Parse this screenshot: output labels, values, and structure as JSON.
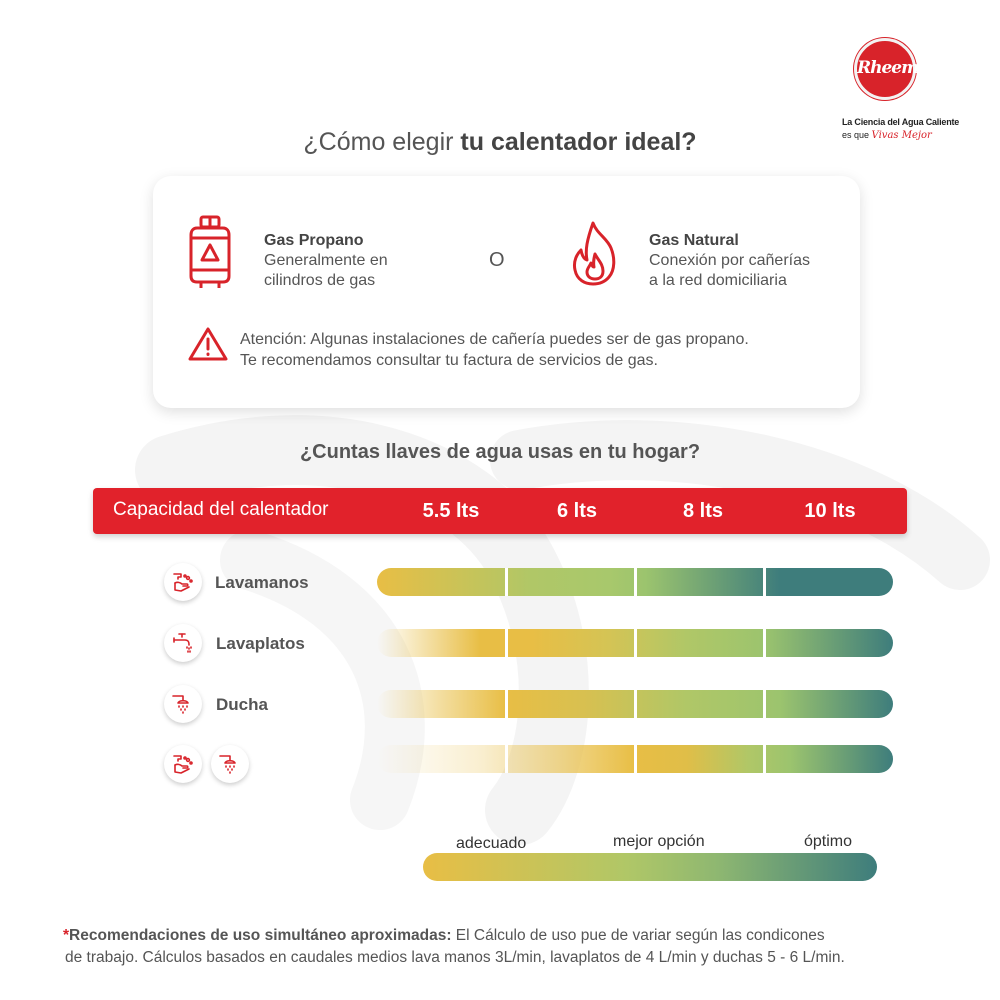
{
  "brand": {
    "logo_text": "Rheem",
    "tagline_line1": "La Ciencia del Agua Caliente",
    "tagline_prefix": "es que",
    "tagline_script": "Vivas Mejor",
    "color": "#d8232a"
  },
  "title": {
    "normal": "¿Cómo elegir ",
    "bold": "tu calentador ideal?"
  },
  "gas_card": {
    "propane": {
      "icon": "gas-cylinder-icon",
      "name": "Gas Propano",
      "desc_line1": "Generalmente en",
      "desc_line2": "cilindros de gas"
    },
    "separator": "O",
    "natural": {
      "icon": "flame-icon",
      "name": "Gas Natural",
      "desc_line1": "Conexión por cañerías",
      "desc_line2": "a la red domiciliaria"
    },
    "warning": {
      "icon": "warning-triangle-icon",
      "line1": "Atención: Algunas instalaciones de cañería puedes ser de gas propano.",
      "line2": "Te recomendamos consultar tu factura de servicios de gas."
    }
  },
  "question": "¿Cuntas llaves de agua usas en tu hogar?",
  "capacity": {
    "label": "Capacidad del calentador",
    "values": [
      "5.5 lts",
      "6 lts",
      "8 lts",
      "10 lts"
    ],
    "color": "#e1222b"
  },
  "rows": [
    {
      "label": "Lavamanos",
      "icons": [
        "hand-wash-icon"
      ]
    },
    {
      "label": "Lavaplatos",
      "icons": [
        "faucet-icon"
      ]
    },
    {
      "label": "Ducha",
      "icons": [
        "shower-icon"
      ]
    },
    {
      "label": "",
      "icons": [
        "hand-wash-icon",
        "shower-icon"
      ]
    }
  ],
  "legend": {
    "labels": [
      "adecuado",
      "mejor opción",
      "óptimo"
    ],
    "colors": {
      "adecuado": "#e8be45",
      "mejor_opcion": "#b0c767",
      "optimo": "#3e7d7c"
    }
  },
  "footnote": {
    "star": "*",
    "bold": "Recomendaciones de uso simultáneo aproximadas:",
    "text1": " El Cálculo de uso pue de  variar según las condicones",
    "line2": "de trabajo. Cálculos basados en caudales medios lava manos 3L/min, lavaplatos de 4 L/min y duchas 5 - 6 L/min."
  }
}
